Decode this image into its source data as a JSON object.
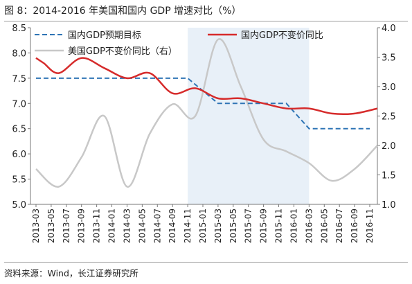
{
  "figure": {
    "title": "图 8：2014-2016 年美国和国内 GDP 增速对比（%）",
    "source": "资料来源：Wind，长江证券研究所"
  },
  "chart_data": {
    "type": "line",
    "title": "",
    "x": [
      "2013-03",
      "2013-05",
      "2013-07",
      "2013-09",
      "2013-11",
      "2014-01",
      "2014-03",
      "2014-05",
      "2014-07",
      "2014-09",
      "2014-11",
      "2015-01",
      "2015-03",
      "2015-05",
      "2015-07",
      "2015-09",
      "2015-11",
      "2016-01",
      "2016-03",
      "2016-05",
      "2016-07",
      "2016-09",
      "2016-11"
    ],
    "y_left": {
      "min": 5.0,
      "max": 8.5,
      "ticks": [
        "5.0",
        "5.5",
        "6.0",
        "6.5",
        "7.0",
        "7.5",
        "8.0",
        "8.5"
      ]
    },
    "y_right": {
      "min": 1.0,
      "max": 4.0,
      "ticks": [
        "1.0",
        "1.5",
        "2.0",
        "2.5",
        "3.0",
        "3.5",
        "4.0"
      ]
    },
    "grid": false,
    "legend_position": "top",
    "shaded_region": {
      "from": "2014-11",
      "to": "2016-03",
      "color": "#e8f0f8"
    },
    "series": [
      {
        "name": "国内GDP预期目标",
        "axis": "left",
        "style": "dashed",
        "color": "#2e74b5",
        "points": [
          [
            "2013-03",
            7.5
          ],
          [
            "2014-11",
            7.5
          ],
          [
            "2015-03",
            7.0
          ],
          [
            "2015-12",
            7.0
          ],
          [
            "2016-03",
            6.5
          ],
          [
            "2016-11",
            6.5
          ]
        ]
      },
      {
        "name": "国内GDP不变价同比",
        "axis": "left",
        "style": "solid",
        "color": "#d62b2b",
        "points": [
          [
            "2013-03",
            7.9
          ],
          [
            "2013-04",
            7.8
          ],
          [
            "2013-06",
            7.6
          ],
          [
            "2013-09",
            7.9
          ],
          [
            "2013-12",
            7.7
          ],
          [
            "2014-03",
            7.5
          ],
          [
            "2014-06",
            7.6
          ],
          [
            "2014-09",
            7.2
          ],
          [
            "2014-12",
            7.3
          ],
          [
            "2015-03",
            7.1
          ],
          [
            "2015-06",
            7.1
          ],
          [
            "2015-09",
            7.0
          ],
          [
            "2015-12",
            6.9
          ],
          [
            "2016-03",
            6.9
          ],
          [
            "2016-06",
            6.8
          ],
          [
            "2016-09",
            6.8
          ],
          [
            "2016-12",
            6.9
          ]
        ]
      },
      {
        "name": "美国GDP不变价同比（右）",
        "axis": "right",
        "style": "solid",
        "color": "#c8c8c8",
        "points": [
          [
            "2013-03",
            1.6
          ],
          [
            "2013-06",
            1.3
          ],
          [
            "2013-09",
            1.8
          ],
          [
            "2013-12",
            2.5
          ],
          [
            "2014-03",
            1.3
          ],
          [
            "2014-06",
            2.2
          ],
          [
            "2014-09",
            2.7
          ],
          [
            "2014-12",
            2.5
          ],
          [
            "2015-03",
            3.8
          ],
          [
            "2015-06",
            3.0
          ],
          [
            "2015-09",
            2.1
          ],
          [
            "2015-12",
            1.9
          ],
          [
            "2016-03",
            1.7
          ],
          [
            "2016-06",
            1.4
          ],
          [
            "2016-09",
            1.6
          ],
          [
            "2016-12",
            2.0
          ]
        ]
      }
    ]
  }
}
